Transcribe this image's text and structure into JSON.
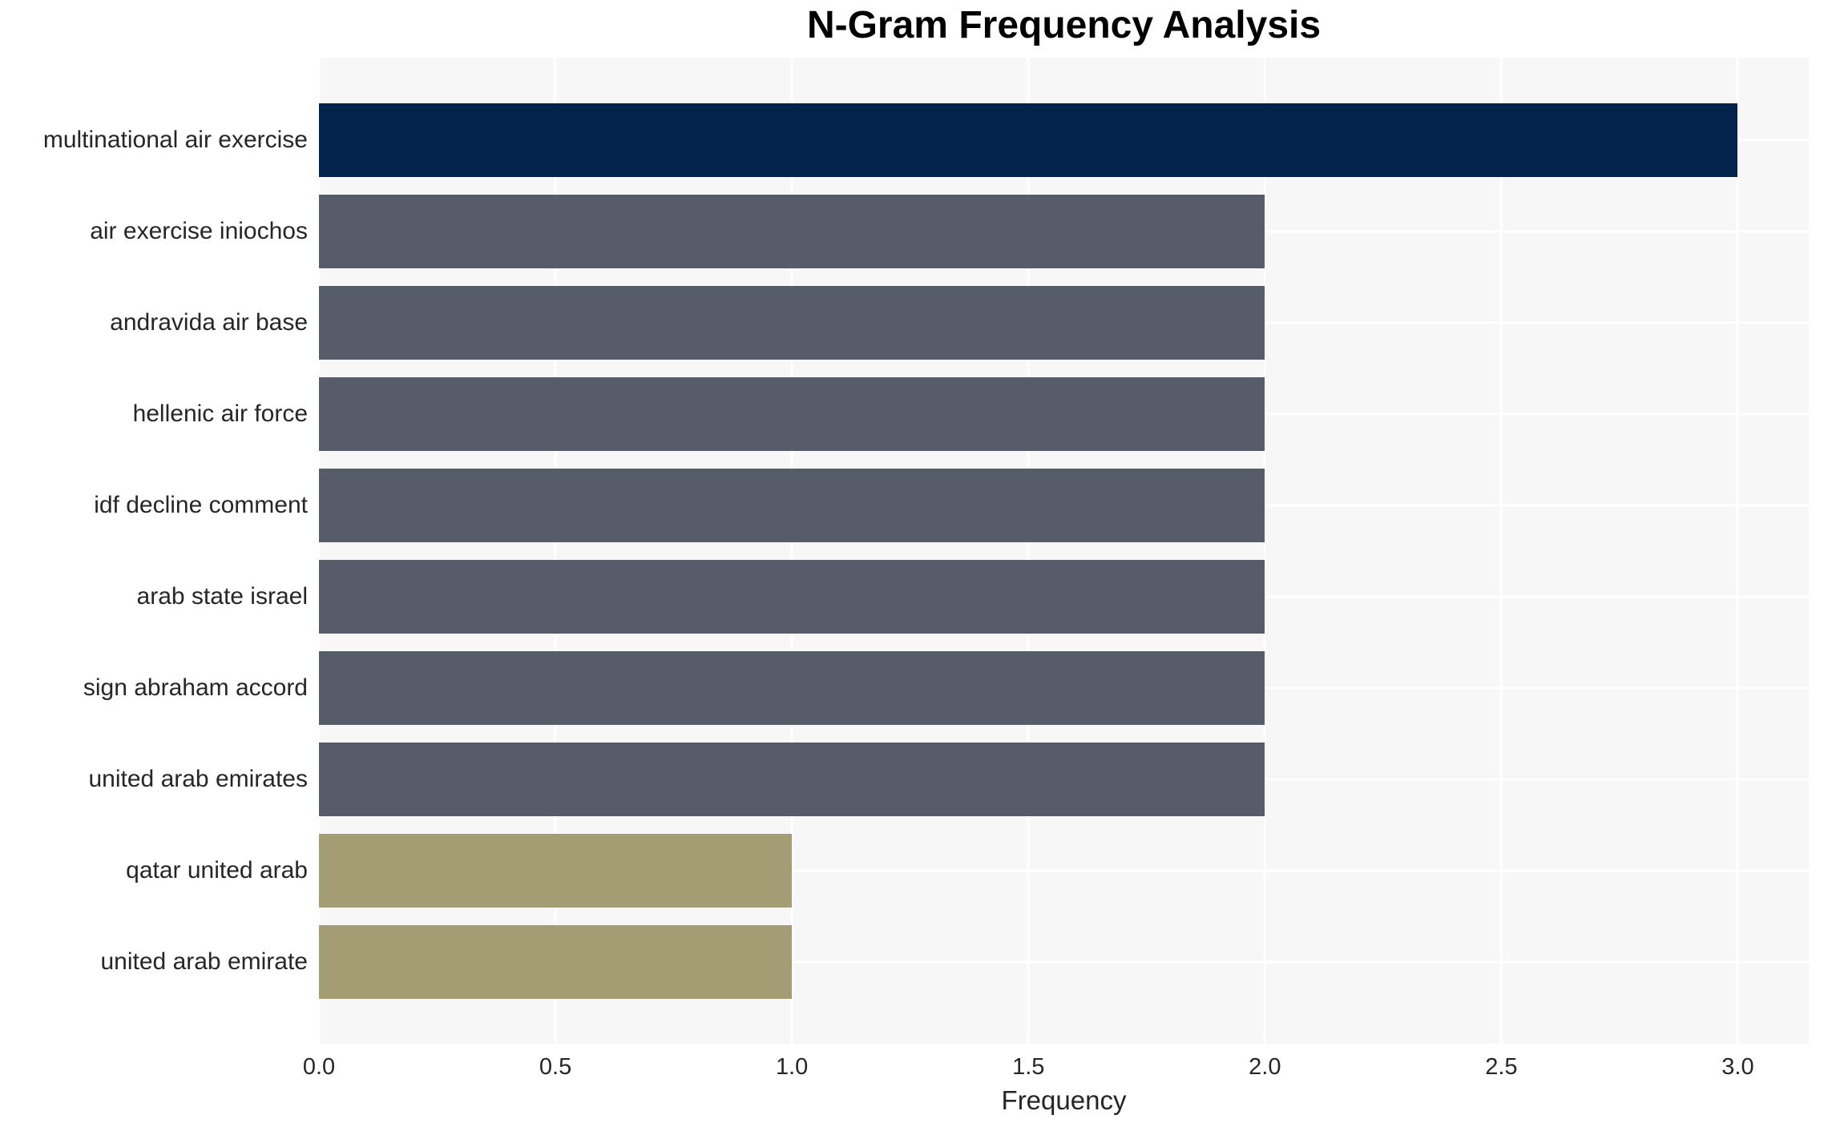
{
  "title": "N-Gram Frequency Analysis",
  "chart_data": {
    "type": "bar",
    "orientation": "horizontal",
    "title": "N-Gram Frequency Analysis",
    "xlabel": "Frequency",
    "ylabel": "",
    "categories": [
      "multinational air exercise",
      "air exercise iniochos",
      "andravida air base",
      "hellenic air force",
      "idf decline comment",
      "arab state israel",
      "sign abraham accord",
      "united arab emirates",
      "qatar united arab",
      "united arab emirate"
    ],
    "values": [
      3,
      2,
      2,
      2,
      2,
      2,
      2,
      2,
      1,
      1
    ],
    "bar_colors": [
      "#02234c",
      "#575c6b",
      "#575c6b",
      "#575c6b",
      "#575c6b",
      "#575c6b",
      "#575c6b",
      "#575c6b",
      "#a49c73",
      "#a49c73"
    ],
    "xlim": [
      0,
      3.15
    ],
    "xticks": [
      0.0,
      0.5,
      1.0,
      1.5,
      2.0,
      2.5,
      3.0
    ],
    "xtick_labels": [
      "0.0",
      "0.5",
      "1.0",
      "1.5",
      "2.0",
      "2.5",
      "3.0"
    ],
    "grid": true,
    "legend": false,
    "colors": {
      "plot_background": "#f7f7f7",
      "figure_background": "#ffffff",
      "grid_color": "#ffffff",
      "tick_label_color": "#262626",
      "title_color": "#000000"
    }
  }
}
